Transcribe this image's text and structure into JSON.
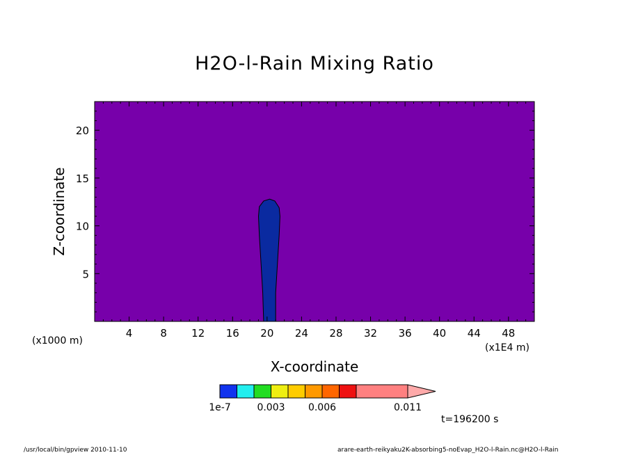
{
  "chart_data": {
    "type": "heatmap",
    "title": "H2O-l-Rain Mixing Ratio",
    "xlabel": "X-coordinate",
    "ylabel": "Z-coordinate",
    "x_unit_note": "(x1E4 m)",
    "z_unit_note": "(x1000 m)",
    "xlim": [
      0,
      51
    ],
    "ylim": [
      0,
      23
    ],
    "x_ticks": [
      4,
      8,
      12,
      16,
      20,
      24,
      28,
      32,
      36,
      40,
      44,
      48
    ],
    "y_ticks": [
      5,
      10,
      15,
      20
    ],
    "background_value_class": "below 1e-7",
    "background_color": "#7700aa",
    "rain_column": {
      "value_class": "1e-7 to ~0.0015",
      "color": "#0a2aa0",
      "outline": [
        [
          19.6,
          0
        ],
        [
          19.5,
          3
        ],
        [
          19.3,
          6
        ],
        [
          19.1,
          9
        ],
        [
          19.0,
          11
        ],
        [
          19.1,
          12
        ],
        [
          19.6,
          12.6
        ],
        [
          20.3,
          12.8
        ],
        [
          20.9,
          12.6
        ],
        [
          21.4,
          11.9
        ],
        [
          21.5,
          11
        ],
        [
          21.4,
          9
        ],
        [
          21.2,
          6
        ],
        [
          21.0,
          3
        ],
        [
          21.0,
          0
        ]
      ]
    },
    "colorbar": {
      "levels": [
        "1e-7",
        "",
        "",
        "0.003",
        "",
        "0.006",
        "",
        "",
        "",
        "0.011"
      ],
      "colors": [
        "#1133ee",
        "#22eeee",
        "#22dd22",
        "#eeee11",
        "#ffcc00",
        "#ff9900",
        "#ff6600",
        "#ee1111",
        "#ff8080",
        "#ffaaaa"
      ],
      "labels": [
        "1e-7",
        "0.003",
        "0.006",
        "0.011"
      ]
    }
  },
  "time_label": "t=196200 s",
  "footer": {
    "left": "/usr/local/bin/gpview  2010-11-10",
    "right": "arare-earth-reikyaku2K-absorbing5-noEvap_H2O-l-Rain.nc@H2O-l-Rain"
  }
}
